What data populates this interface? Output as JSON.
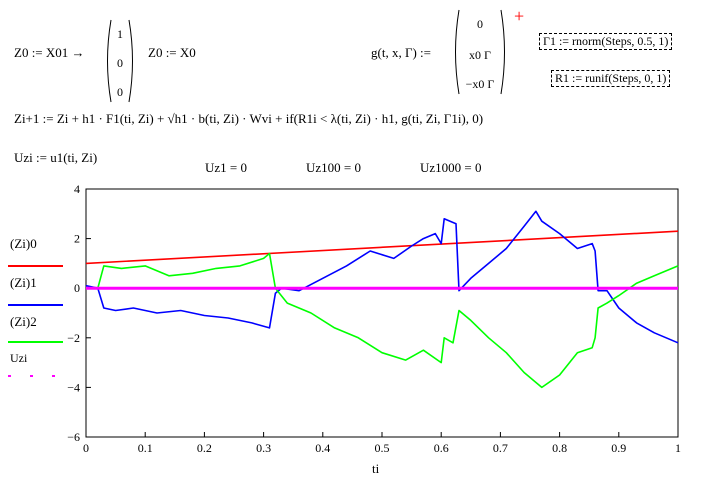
{
  "worksheet": {
    "eq_z0_lhs": "Z0 := X01 →",
    "eq_z0_vector": [
      "1",
      "0",
      "0"
    ],
    "eq_z0_assign": "Z0 := X0",
    "eq_g_lhs": "g(t, x, Γ) :=",
    "eq_g_vector": [
      "0",
      "x0 Γ",
      "−x0 Γ"
    ],
    "plus_marker": "+",
    "eq_gamma1": "Γ1 := rnorm(Steps, 0.5, 1)",
    "eq_r1": "R1 := runif(Steps, 0, 1)",
    "eq_recurrence": "Zi+1 := Zi + h1 · F1(ti, Zi) + √h1 · b(ti, Zi) · Wvi + if(R1i < λ(ti, Zi) · h1, g(ti, Zi, Γ1i), 0)",
    "eq_uz": "Uzi := u1(ti, Zi)",
    "uz_values": [
      "Uz1 = 0",
      "Uz100 = 0",
      "Uz1000 = 0"
    ]
  },
  "chart_data": {
    "type": "line",
    "xlabel": "ti",
    "xlim": [
      0,
      1
    ],
    "ylim": [
      -6,
      4
    ],
    "x_ticks": [
      "0",
      "0.1",
      "0.2",
      "0.3",
      "0.4",
      "0.5",
      "0.6",
      "0.7",
      "0.8",
      "0.9",
      "1"
    ],
    "y_ticks": [
      "4",
      "2",
      "0",
      "−2",
      "−4",
      "−6"
    ],
    "legend_placement": "left",
    "series": [
      {
        "name": "(Zi)0",
        "color": "#ff0000",
        "x": [
          0,
          1
        ],
        "y": [
          1.0,
          2.3
        ]
      },
      {
        "name": "(Zi)1",
        "color": "#0000ff",
        "x": [
          0,
          0.02,
          0.03,
          0.05,
          0.08,
          0.12,
          0.16,
          0.2,
          0.24,
          0.28,
          0.31,
          0.32,
          0.33,
          0.36,
          0.4,
          0.44,
          0.48,
          0.52,
          0.55,
          0.57,
          0.59,
          0.6,
          0.605,
          0.625,
          0.63,
          0.65,
          0.68,
          0.71,
          0.74,
          0.76,
          0.77,
          0.8,
          0.83,
          0.855,
          0.86,
          0.865,
          0.88,
          0.9,
          0.93,
          0.96,
          1.0
        ],
        "y": [
          0.1,
          0.0,
          -0.8,
          -0.9,
          -0.8,
          -1.0,
          -0.9,
          -1.1,
          -1.2,
          -1.4,
          -1.6,
          -0.2,
          0.0,
          -0.1,
          0.4,
          0.9,
          1.5,
          1.2,
          1.7,
          2.0,
          2.2,
          1.8,
          2.8,
          2.6,
          -0.1,
          0.4,
          1.0,
          1.6,
          2.5,
          3.1,
          2.7,
          2.2,
          1.6,
          1.8,
          1.5,
          -0.1,
          -0.1,
          -0.8,
          -1.4,
          -1.8,
          -2.2
        ]
      },
      {
        "name": "(Zi)2",
        "color": "#00ff00",
        "x": [
          0,
          0.02,
          0.03,
          0.06,
          0.1,
          0.14,
          0.18,
          0.22,
          0.26,
          0.3,
          0.31,
          0.32,
          0.34,
          0.38,
          0.42,
          0.46,
          0.5,
          0.54,
          0.57,
          0.6,
          0.605,
          0.62,
          0.63,
          0.65,
          0.68,
          0.71,
          0.74,
          0.77,
          0.8,
          0.83,
          0.855,
          0.86,
          0.865,
          0.88,
          0.9,
          0.93,
          0.96,
          1.0
        ],
        "y": [
          0.0,
          0.0,
          0.9,
          0.8,
          0.9,
          0.5,
          0.6,
          0.8,
          0.9,
          1.2,
          1.4,
          0.0,
          -0.6,
          -1.0,
          -1.6,
          -2.0,
          -2.6,
          -2.9,
          -2.5,
          -3.0,
          -2.0,
          -2.2,
          -0.9,
          -1.3,
          -2.0,
          -2.6,
          -3.4,
          -4.0,
          -3.5,
          -2.6,
          -2.4,
          -2.0,
          -0.8,
          -0.6,
          -0.3,
          0.2,
          0.5,
          0.9
        ]
      },
      {
        "name": "Uzi",
        "color": "#ff00ff",
        "x": [
          0,
          1
        ],
        "y": [
          0,
          0
        ]
      }
    ]
  }
}
